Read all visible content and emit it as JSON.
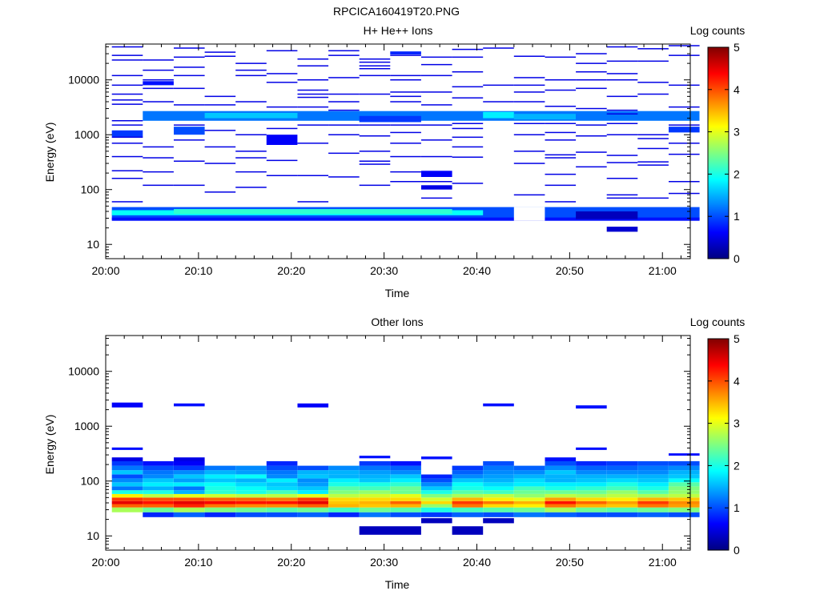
{
  "figure_title": "RPCICA160419T20.PNG",
  "colors": {
    "jet": [
      "#000080",
      "#0000ff",
      "#0080ff",
      "#00ffff",
      "#80ff80",
      "#ffff00",
      "#ff8000",
      "#ff0000",
      "#800000"
    ]
  },
  "chart_data": [
    {
      "type": "heatmap",
      "title": "H+ He++ Ions",
      "xlabel": "Time",
      "ylabel": "Energy (eV)",
      "colorbar_label": "Log counts",
      "colorbar_ticks": [
        "0",
        "1",
        "2",
        "3",
        "4",
        "5"
      ],
      "clim": [
        0,
        5
      ],
      "x_ticks": [
        "20:00",
        "20:10",
        "20:20",
        "20:30",
        "20:40",
        "20:50",
        "21:00"
      ],
      "y_ticks": [
        "10",
        "100",
        "1000",
        "10000"
      ],
      "y_scale": "log",
      "y_range_eV": [
        5.5,
        45000
      ],
      "x_range": [
        "20:00",
        "21:03"
      ],
      "time_bins": [
        "20:02:20",
        "20:05:40",
        "20:09:00",
        "20:12:20",
        "20:15:40",
        "20:19:00",
        "20:22:20",
        "20:25:40",
        "20:29:00",
        "20:32:20",
        "20:35:40",
        "20:39:00",
        "20:42:20",
        "20:45:40",
        "20:49:00",
        "20:52:20",
        "20:55:40",
        "20:59:00",
        "21:02:20"
      ],
      "cells": [
        {
          "t": [
            0,
            18
          ],
          "e": [
            28,
            48
          ],
          "v": 1.0
        },
        {
          "t": [
            0,
            11
          ],
          "e": [
            34,
            42
          ],
          "v": 1.9
        },
        {
          "t": [
            2,
            10
          ],
          "e": [
            36,
            44
          ],
          "v": 2.1
        },
        {
          "t": [
            0,
            18
          ],
          "e": [
            27,
            31
          ],
          "v": 0.7
        },
        {
          "t": [
            13,
            13
          ],
          "e": [
            27,
            48
          ],
          "v": -1
        },
        {
          "t": [
            15,
            16
          ],
          "e": [
            29,
            40
          ],
          "v": 0.3
        },
        {
          "t": [
            16,
            16
          ],
          "e": [
            17,
            21
          ],
          "v": 0.4
        },
        {
          "t": [
            1,
            18
          ],
          "e": [
            1800,
            2700
          ],
          "v": 1.2
        },
        {
          "t": [
            3,
            5
          ],
          "e": [
            2000,
            2500
          ],
          "v": 1.6
        },
        {
          "t": [
            8,
            9
          ],
          "e": [
            1700,
            2200
          ],
          "v": 0.9
        },
        {
          "t": [
            12,
            12
          ],
          "e": [
            2000,
            2600
          ],
          "v": 1.8
        },
        {
          "t": [
            13,
            14
          ],
          "e": [
            1900,
            2400
          ],
          "v": 1.5
        },
        {
          "t": [
            5,
            5
          ],
          "e": [
            650,
            1000
          ],
          "v": 0.6
        },
        {
          "t": [
            0,
            0
          ],
          "e": [
            900,
            1200
          ],
          "v": 0.9
        },
        {
          "t": [
            2,
            2
          ],
          "e": [
            1000,
            1400
          ],
          "v": 1.0
        },
        {
          "t": [
            10,
            10
          ],
          "e": [
            170,
            220
          ],
          "v": 0.6
        },
        {
          "t": [
            10,
            10
          ],
          "e": [
            100,
            120
          ],
          "v": 0.5
        },
        {
          "t": [
            18,
            18
          ],
          "e": [
            1100,
            1400
          ],
          "v": 0.9
        },
        {
          "t": [
            1,
            1
          ],
          "e": [
            8000,
            9500
          ],
          "v": 0.7
        },
        {
          "t": [
            9,
            9
          ],
          "e": [
            29000,
            33000
          ],
          "v": 0.8
        }
      ],
      "lines": [
        {
          "t": 0,
          "e": [
            40000,
            28000,
            23000,
            12000,
            8000,
            5500,
            4300,
            3600,
            1800,
            1500,
            900,
            700,
            400,
            220,
            160,
            60
          ]
        },
        {
          "t": 1,
          "e": [
            23000,
            15000,
            10000,
            7000,
            4000,
            600,
            380,
            210,
            120
          ]
        },
        {
          "t": 2,
          "e": [
            38000,
            26000,
            17000,
            12000,
            7000,
            3500,
            1500,
            800,
            330,
            120
          ]
        },
        {
          "t": 3,
          "e": [
            32000,
            27000,
            5000,
            3500,
            1200,
            600,
            300,
            90
          ]
        },
        {
          "t": 4,
          "e": [
            20000,
            15000,
            12000,
            4000,
            1000,
            500,
            380,
            210,
            110
          ]
        },
        {
          "t": 5,
          "e": [
            34000,
            13000,
            9000,
            3200,
            1300,
            340,
            180
          ]
        },
        {
          "t": 6,
          "e": [
            24000,
            18000,
            10000,
            6500,
            5500,
            4800,
            3200,
            1500,
            700,
            180,
            60
          ]
        },
        {
          "t": 7,
          "e": [
            34000,
            28000,
            11000,
            5500,
            4000,
            2800,
            1500,
            1000,
            460,
            170
          ]
        },
        {
          "t": 8,
          "e": [
            24000,
            21000,
            18000,
            16000,
            12000,
            5500,
            1500,
            950,
            500,
            330,
            290,
            120
          ]
        },
        {
          "t": 9,
          "e": [
            28000,
            12000,
            10000,
            6000,
            5000,
            4000,
            1500,
            1100,
            700,
            400,
            210,
            140
          ]
        },
        {
          "t": 10,
          "e": [
            26000,
            19000,
            12000,
            6000,
            3500,
            1500,
            800,
            400,
            140,
            70
          ]
        },
        {
          "t": 11,
          "e": [
            36000,
            26000,
            14000,
            7500,
            4700,
            1600,
            1300,
            900,
            600,
            390,
            130
          ]
        },
        {
          "t": 12,
          "e": [
            38000,
            8000,
            4000
          ]
        },
        {
          "t": 13,
          "e": [
            27000,
            11000,
            8000,
            6000,
            4000,
            1600,
            1000,
            500,
            300,
            80
          ]
        },
        {
          "t": 14,
          "e": [
            26000,
            10000,
            6500,
            3300,
            1600,
            1100,
            800,
            430,
            380,
            190,
            120,
            60
          ]
        },
        {
          "t": 15,
          "e": [
            30000,
            20000,
            14000,
            10000,
            7000,
            3000,
            1500,
            950,
            480,
            260
          ]
        },
        {
          "t": 16,
          "e": [
            40000,
            22000,
            13000,
            10000,
            5000,
            2800,
            2400,
            1600,
            1000,
            420,
            310,
            160,
            80,
            70
          ]
        },
        {
          "t": 17,
          "e": [
            37000,
            22000,
            9000,
            5500,
            1000,
            850,
            560,
            320,
            280,
            70
          ]
        },
        {
          "t": 18,
          "e": [
            42000,
            28000,
            8000,
            3200,
            1500,
            700,
            440,
            140,
            85
          ]
        }
      ]
    },
    {
      "type": "heatmap",
      "title": "Other Ions",
      "xlabel": "Time",
      "ylabel": "Energy (eV)",
      "colorbar_label": "Log counts",
      "colorbar_ticks": [
        "0",
        "1",
        "2",
        "3",
        "4",
        "5"
      ],
      "clim": [
        0,
        5
      ],
      "x_ticks": [
        "20:00",
        "20:10",
        "20:20",
        "20:30",
        "20:40",
        "20:50",
        "21:00"
      ],
      "y_ticks": [
        "10",
        "100",
        "1000",
        "10000"
      ],
      "y_scale": "log",
      "y_range_eV": [
        5.5,
        45000
      ],
      "x_range": [
        "20:00",
        "21:03"
      ],
      "energy_bins": [
        22,
        27,
        33,
        38,
        43,
        50,
        58,
        68,
        80,
        95,
        112,
        132,
        158,
        190,
        230,
        270
      ],
      "columns": [
        {
          "t": 0,
          "top": 270,
          "v": [
            -1,
            2.7,
            3.9,
            4.5,
            4.1,
            3.2,
            2.0,
            1.2,
            1.6,
            1.3,
            1.0,
            1.6,
            1.2,
            0.9,
            0.5
          ]
        },
        {
          "t": 1,
          "top": 230,
          "v": [
            0.8,
            2.4,
            3.9,
            4.3,
            4.0,
            2.8,
            2.0,
            1.5,
            1.8,
            1.6,
            1.3,
            1.2,
            1.0,
            0.7,
            -1
          ]
        },
        {
          "t": 2,
          "top": 270,
          "v": [
            1.1,
            2.7,
            4.2,
            4.5,
            4.0,
            3.0,
            1.5,
            1.2,
            1.8,
            1.4,
            1.6,
            1.3,
            0.9,
            0.6,
            0.5
          ]
        },
        {
          "t": 3,
          "top": 190,
          "v": [
            0.8,
            2.5,
            3.8,
            4.4,
            3.9,
            2.9,
            2.1,
            2.0,
            1.9,
            1.6,
            1.8,
            1.5,
            1.2,
            0.8,
            -1
          ]
        },
        {
          "t": 4,
          "top": 190,
          "v": [
            1.0,
            2.4,
            3.7,
            4.3,
            3.9,
            2.8,
            2.0,
            1.9,
            1.7,
            1.5,
            1.9,
            1.4,
            1.3,
            0.9,
            -1
          ]
        },
        {
          "t": 5,
          "top": 230,
          "v": [
            1.0,
            2.3,
            3.7,
            4.3,
            3.8,
            2.8,
            2.2,
            1.7,
            1.6,
            1.8,
            1.3,
            1.2,
            1.0,
            0.8,
            -1
          ]
        },
        {
          "t": 6,
          "top": 210,
          "v": [
            1.1,
            2.4,
            3.9,
            4.5,
            4.1,
            3.0,
            1.8,
            1.6,
            1.4,
            1.3,
            1.6,
            1.5,
            1.0,
            0.8,
            -1
          ]
        },
        {
          "t": 7,
          "top": 190,
          "v": [
            0.8,
            2.2,
            3.5,
            3.4,
            3.3,
            2.8,
            2.5,
            2.3,
            2.0,
            1.8,
            1.5,
            1.5,
            1.3,
            0.9,
            -1
          ]
        },
        {
          "t": 8,
          "top": 230,
          "v": [
            1.2,
            2.4,
            3.4,
            3.5,
            3.3,
            2.9,
            2.6,
            2.2,
            2.0,
            1.6,
            1.5,
            1.4,
            1.2,
            0.9,
            -1
          ]
        },
        {
          "t": 9,
          "top": 230,
          "v": [
            1.0,
            2.3,
            3.5,
            3.9,
            3.3,
            3.0,
            2.4,
            2.4,
            2.1,
            1.8,
            1.6,
            1.3,
            1.1,
            0.7,
            -1
          ]
        },
        {
          "t": 10,
          "top": 132,
          "v": [
            0.9,
            2.0,
            2.6,
            3.3,
            2.9,
            2.5,
            2.0,
            1.6,
            1.3,
            1.0,
            0.8,
            -1,
            -1,
            -1,
            -1
          ]
        },
        {
          "t": 11,
          "top": 190,
          "v": [
            1.1,
            2.2,
            3.8,
            4.1,
            3.5,
            2.7,
            2.3,
            2.0,
            1.9,
            1.6,
            1.3,
            1.1,
            0.9,
            0.7,
            -1
          ]
        },
        {
          "t": 12,
          "top": 230,
          "v": [
            1.0,
            2.3,
            3.3,
            3.8,
            3.2,
            2.8,
            2.2,
            1.9,
            1.7,
            1.5,
            1.4,
            1.3,
            1.2,
            1.0,
            -1
          ]
        },
        {
          "t": 13,
          "top": 190,
          "v": [
            1.2,
            2.4,
            3.2,
            3.5,
            3.0,
            2.6,
            2.4,
            2.2,
            1.8,
            1.7,
            1.5,
            1.3,
            1.1,
            0.9,
            -1
          ]
        },
        {
          "t": 14,
          "top": 270,
          "v": [
            1.1,
            2.7,
            3.8,
            4.3,
            3.6,
            2.8,
            2.4,
            2.0,
            1.8,
            1.5,
            1.5,
            1.6,
            1.3,
            1.0,
            0.7
          ]
        },
        {
          "t": 15,
          "top": 230,
          "v": [
            1.0,
            2.4,
            3.5,
            3.9,
            3.3,
            2.7,
            2.4,
            2.1,
            1.8,
            1.6,
            1.5,
            1.3,
            1.1,
            0.8,
            -1
          ]
        },
        {
          "t": 16,
          "top": 230,
          "v": [
            1.0,
            2.3,
            3.4,
            3.6,
            3.2,
            2.8,
            2.6,
            2.2,
            2.0,
            1.7,
            1.5,
            1.3,
            1.1,
            0.9,
            -1
          ]
        },
        {
          "t": 17,
          "top": 230,
          "v": [
            1.1,
            2.4,
            3.8,
            4.1,
            3.5,
            2.7,
            2.3,
            2.0,
            1.8,
            1.6,
            1.5,
            1.3,
            1.2,
            1.0,
            -1
          ]
        },
        {
          "t": 18,
          "top": 230,
          "v": [
            1.0,
            2.5,
            3.6,
            3.7,
            3.4,
            2.8,
            2.6,
            2.5,
            2.3,
            1.9,
            1.6,
            1.5,
            1.3,
            1.0,
            -1
          ]
        }
      ],
      "cells": [
        {
          "t": [
            8,
            9
          ],
          "e": [
            10.5,
            15
          ],
          "v": 0.3
        },
        {
          "t": [
            10,
            10
          ],
          "e": [
            17,
            21
          ],
          "v": 0.3
        },
        {
          "t": [
            11,
            11
          ],
          "e": [
            10.5,
            15
          ],
          "v": 0.3
        },
        {
          "t": [
            12,
            12
          ],
          "e": [
            17,
            21
          ],
          "v": 0.3
        },
        {
          "t": [
            0,
            0
          ],
          "e": [
            2200,
            2700
          ],
          "v": 0.6
        },
        {
          "t": [
            2,
            2
          ],
          "e": [
            2300,
            2600
          ],
          "v": 0.7
        },
        {
          "t": [
            6,
            6
          ],
          "e": [
            2200,
            2600
          ],
          "v": 0.6
        },
        {
          "t": [
            12,
            12
          ],
          "e": [
            2300,
            2600
          ],
          "v": 0.7
        },
        {
          "t": [
            15,
            15
          ],
          "e": [
            2100,
            2400
          ],
          "v": 0.7
        },
        {
          "t": [
            0,
            0
          ],
          "e": [
            370,
            410
          ],
          "v": 0.7
        },
        {
          "t": [
            8,
            8
          ],
          "e": [
            260,
            290
          ],
          "v": 0.7
        },
        {
          "t": [
            10,
            10
          ],
          "e": [
            250,
            280
          ],
          "v": 0.7
        },
        {
          "t": [
            15,
            15
          ],
          "e": [
            370,
            410
          ],
          "v": 0.7
        },
        {
          "t": [
            18,
            18
          ],
          "e": [
            290,
            320
          ],
          "v": 0.7
        }
      ]
    }
  ]
}
